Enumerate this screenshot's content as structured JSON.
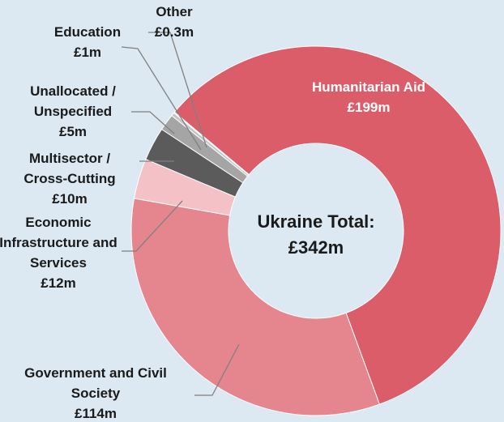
{
  "chart_data": {
    "type": "donut",
    "categories": [
      "Humanitarian Aid",
      "Government and Civil Society",
      "Economic Infrastructure and Services",
      "Multisector / Cross-Cutting",
      "Unallocated / Unspecified",
      "Education",
      "Other"
    ],
    "values": [
      199,
      114,
      12,
      10,
      5,
      1,
      0.3
    ],
    "value_labels": [
      "£199m",
      "£114m",
      "£12m",
      "£10m",
      "£5m",
      "£1m",
      "£0.3m"
    ],
    "colors": [
      "#da5d69",
      "#e5868f",
      "#f3c1c6",
      "#5b5b5b",
      "#a5a5a5",
      "#c4c4c4",
      "#dedede"
    ],
    "center_text": [
      "Ukraine Total:",
      "£342m"
    ]
  }
}
